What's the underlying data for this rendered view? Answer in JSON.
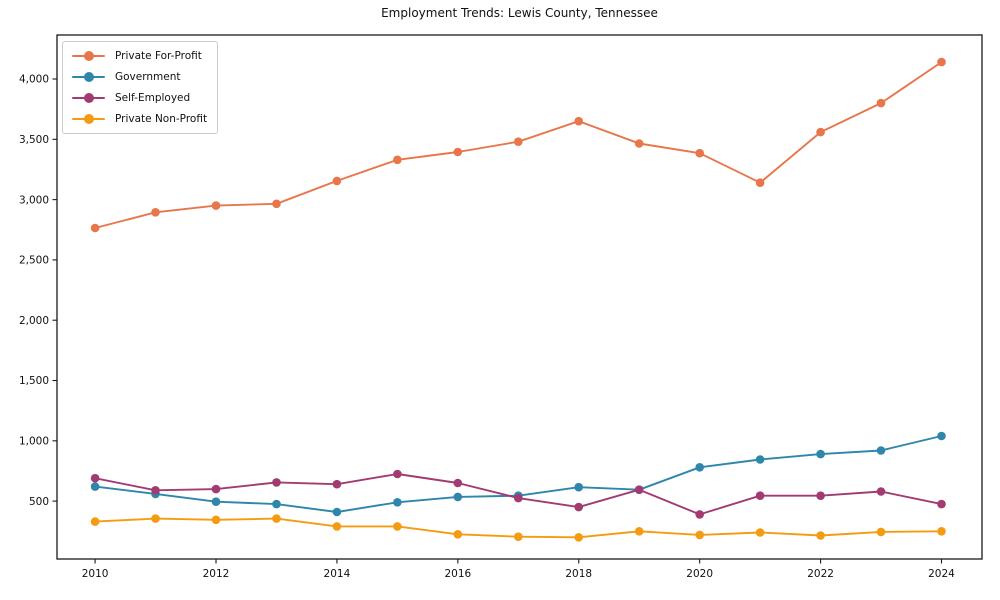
{
  "figure": {
    "title": "Employment Trends: Lewis County, Tennessee"
  },
  "chart_data": {
    "type": "line",
    "title": "Employment Trends: Lewis County, Tennessee",
    "xlabel": "",
    "ylabel": "",
    "x": [
      2010,
      2011,
      2012,
      2013,
      2014,
      2015,
      2016,
      2017,
      2018,
      2019,
      2020,
      2021,
      2022,
      2023,
      2024
    ],
    "series": [
      {
        "name": "Private For-Profit",
        "color": "#e8764b",
        "values": [
          2765,
          2895,
          2950,
          2965,
          3155,
          3330,
          3395,
          3480,
          3650,
          3465,
          3385,
          3140,
          3560,
          3800,
          4140
        ]
      },
      {
        "name": "Government",
        "color": "#2e86ab",
        "values": [
          620,
          560,
          495,
          475,
          410,
          490,
          535,
          545,
          615,
          595,
          780,
          845,
          890,
          920,
          1040
        ]
      },
      {
        "name": "Self-Employed",
        "color": "#a23b72",
        "values": [
          690,
          590,
          600,
          655,
          640,
          725,
          650,
          525,
          450,
          595,
          390,
          545,
          545,
          580,
          475
        ]
      },
      {
        "name": "Private Non-Profit",
        "color": "#f39c12",
        "values": [
          330,
          355,
          345,
          355,
          290,
          290,
          225,
          205,
          200,
          250,
          220,
          240,
          215,
          245,
          250
        ]
      }
    ],
    "xticks": {
      "values": [
        2010,
        2012,
        2014,
        2016,
        2018,
        2020,
        2022,
        2024
      ],
      "labels": [
        "2010",
        "2012",
        "2014",
        "2016",
        "2018",
        "2020",
        "2022",
        "2024"
      ]
    },
    "yticks": {
      "values": [
        500,
        1000,
        1500,
        2000,
        2500,
        3000,
        3500,
        4000
      ],
      "labels": [
        "500",
        "1,000",
        "1,500",
        "2,000",
        "2,500",
        "3,000",
        "3,500",
        "4,000"
      ]
    },
    "xlim": [
      2009.37,
      2024.67
    ],
    "ylim": [
      20,
      4365
    ],
    "grid": false,
    "legend_position": "upper-left",
    "marker": "circle",
    "axis_color": "#1a1a1a"
  }
}
